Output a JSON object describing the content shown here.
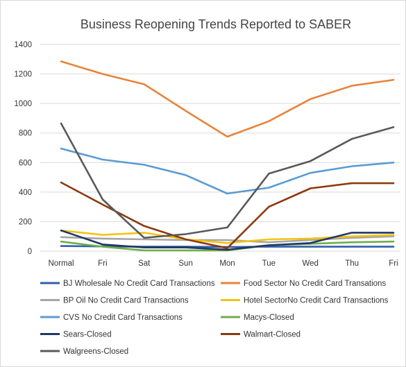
{
  "chart_data": {
    "type": "line",
    "title": "Business Reopening Trends Reported to SABER",
    "xlabel": "",
    "ylabel": "",
    "categories": [
      "Normal",
      "Fri",
      "Sat",
      "Sun",
      "Mon",
      "Tue",
      "Wed",
      "Thu",
      "Fri"
    ],
    "ylim": [
      0,
      1400
    ],
    "yticks": [
      0,
      200,
      400,
      600,
      800,
      1000,
      1200,
      1400
    ],
    "grid": true,
    "legend_position": "bottom",
    "series": [
      {
        "name": "BJ Wholesale No Credit Card Transactions",
        "color": "#2E5FAB",
        "values": [
          35,
          32,
          30,
          30,
          28,
          30,
          30,
          30,
          30
        ]
      },
      {
        "name": "Food Sector No Credit Card Transations",
        "color": "#E8833A",
        "values": [
          1285,
          1200,
          1130,
          950,
          775,
          880,
          1030,
          1120,
          1160
        ]
      },
      {
        "name": "BP Oil No Credit Card Transactions",
        "color": "#A5A5A5",
        "values": [
          95,
          85,
          80,
          75,
          75,
          60,
          75,
          90,
          100
        ]
      },
      {
        "name": "Hotel SectorNo Credit Card Transactions",
        "color": "#F2C314",
        "values": [
          140,
          110,
          125,
          80,
          55,
          80,
          85,
          100,
          110
        ]
      },
      {
        "name": "CVS No Credit Card Transactions",
        "color": "#5A9BD5",
        "values": [
          695,
          620,
          585,
          515,
          390,
          430,
          530,
          575,
          600
        ]
      },
      {
        "name": "Macys-Closed",
        "color": "#70AD47",
        "values": [
          65,
          30,
          5,
          5,
          5,
          40,
          50,
          60,
          65
        ]
      },
      {
        "name": "Sears-Closed",
        "color": "#203864",
        "values": [
          140,
          45,
          25,
          25,
          10,
          40,
          55,
          125,
          125
        ]
      },
      {
        "name": "Walmart-Closed",
        "color": "#8B3A0F",
        "values": [
          465,
          315,
          170,
          80,
          20,
          300,
          425,
          460,
          460
        ]
      },
      {
        "name": "Walgreens-Closed",
        "color": "#595959",
        "values": [
          865,
          350,
          90,
          115,
          160,
          525,
          610,
          760,
          840
        ]
      }
    ]
  }
}
